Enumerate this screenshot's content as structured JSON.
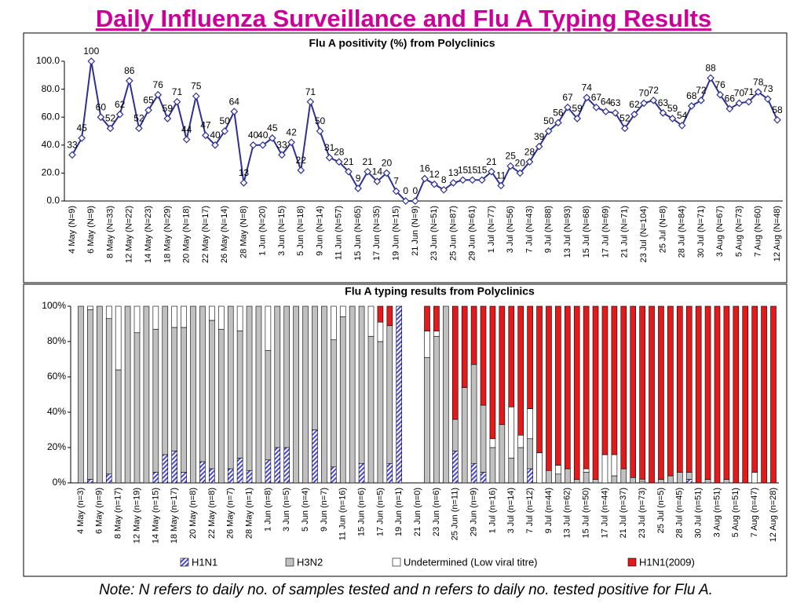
{
  "title": "Daily Influenza Surveillance and Flu A Typing Results",
  "note": "Note: N refers to daily no. of samples tested and n refers to daily no. tested positive for Flu A.",
  "chart_data": [
    {
      "type": "line",
      "title": "Flu A positivity (%) from Polyclinics",
      "color": "#2e3192",
      "categories": [
        "4 May (N=9)",
        null,
        "6 May (N=9)",
        null,
        "8 May (N=33)",
        null,
        "12 May (N=22)",
        null,
        "14 May (N=23)",
        null,
        "18 May (N=29)",
        null,
        "20 May (N=18)",
        null,
        "22 May (N=17)",
        null,
        "26 May (N=14)",
        null,
        "28 May (N=8)",
        null,
        "1 Jun (N=20)",
        null,
        "3 Jun (N=15)",
        null,
        "5 Jun (N=18)",
        null,
        "9 Jun (N=14)",
        null,
        "11 Jun (N=57)",
        null,
        "15 Jun (N=65)",
        null,
        "17 Jun (N=35)",
        null,
        "19 Jun (N=15)",
        null,
        "21 Jun (N=9)",
        null,
        "23 Jun (N=51)",
        null,
        "25 Jun (N=87)",
        null,
        "29 Jun (N=61)",
        null,
        "1 Jul (N=77)",
        null,
        "3 Jul (N=56)",
        null,
        "7 Jul (N=43)",
        null,
        "9 Jul (N=88)",
        null,
        "13 Jul (N=93)",
        null,
        "15 Jul (N=68)",
        null,
        "17 Jul (N=69)",
        null,
        "21 Jul (N=71)",
        null,
        "23 Jul (N=104)",
        null,
        "25 Jul (N=8)",
        null,
        "28 Jul (N=84)",
        null,
        "30 Jul (N=71)",
        null,
        "3 Aug (N=67)",
        null,
        "5 Aug (N=73)",
        null,
        "7 Aug (N=60)",
        null,
        "12 Aug (N=48)"
      ],
      "values": [
        33,
        45,
        100,
        60,
        52,
        62,
        86,
        52,
        65,
        76,
        59,
        71,
        44,
        75,
        47,
        40,
        50,
        64,
        13,
        40,
        40,
        45,
        33,
        42,
        22,
        71,
        50,
        31,
        28,
        21,
        9,
        21,
        14,
        20,
        7,
        0,
        0,
        16,
        12,
        8,
        13,
        15,
        15,
        15,
        21,
        11,
        25,
        20,
        28,
        39,
        50,
        56,
        67,
        59,
        74,
        67,
        64,
        63,
        52,
        62,
        70,
        72,
        63,
        59,
        54,
        68,
        72,
        88,
        76,
        66,
        70,
        71,
        78,
        73,
        58
      ],
      "ylim": [
        0,
        100
      ],
      "yticks": [
        {
          "value": 0,
          "label": "0.0"
        },
        {
          "value": 20,
          "label": "20.0"
        },
        {
          "value": 40,
          "label": "40.0"
        },
        {
          "value": 60,
          "label": "60.0"
        },
        {
          "value": 80,
          "label": "80.0"
        },
        {
          "value": 100,
          "label": "100.0"
        }
      ]
    },
    {
      "type": "stacked_bar",
      "title": "Flu A typing results from Polyclinics",
      "categories": [
        "4 May (n=3)",
        null,
        "6 May (n=9)",
        null,
        "8 May (n=17)",
        null,
        "12 May (n=19)",
        null,
        "14 May (n=15)",
        null,
        "18 May (n=17)",
        null,
        "20 May (n=8)",
        null,
        "22 May (n=8)",
        null,
        "26 May (n=7)",
        null,
        "28 May (n=1)",
        null,
        "1 Jun (n=8)",
        null,
        "3 Jun (n=5)",
        null,
        "5 Jun (n=4)",
        null,
        "9 Jun (n=7)",
        null,
        "11 Jun (n=16)",
        null,
        "15 Jun (n=6)",
        null,
        "17 Jun (n=5)",
        null,
        "19 Jun (n=1)",
        null,
        "21 Jun (n=0)",
        null,
        "23 Jun (n=6)",
        null,
        "25 Jun (n=11)",
        null,
        "29 Jun (n=9)",
        null,
        "1 Jul (n=16)",
        null,
        "3 Jul (n=14)",
        null,
        "7 Jul (n=12)",
        null,
        "9 Jul (n=44)",
        null,
        "13 Jul (n=62)",
        null,
        "15 Jul (n=50)",
        null,
        "17 Jul (n=44)",
        null,
        "21 Jul (n=37)",
        null,
        "23 Jul (n=73)",
        null,
        "25 Jul (n=5)",
        null,
        "28 Jul (n=45)",
        null,
        "30 Jul (n=51)",
        null,
        "3 Aug (n=51)",
        null,
        "5 Aug (n=51)",
        null,
        "7 Aug (n=47)",
        null,
        "12 Aug (n=28)"
      ],
      "series": [
        {
          "name": "H1N1",
          "color": "#4a4ad6",
          "pattern": "hatch",
          "values": [
            0,
            2,
            0,
            5,
            0,
            0,
            0,
            0,
            6,
            16,
            18,
            6,
            0,
            12,
            8,
            0,
            8,
            14,
            7,
            0,
            13,
            20,
            20,
            0,
            0,
            30,
            0,
            9,
            0,
            0,
            11,
            0,
            0,
            11,
            100,
            0,
            0,
            0,
            0,
            0,
            18,
            0,
            11,
            6,
            0,
            0,
            0,
            0,
            8,
            0,
            0,
            0,
            0,
            0,
            0,
            0,
            0,
            0,
            0,
            0,
            0,
            0,
            0,
            0,
            0,
            2,
            0,
            0,
            0,
            0,
            0,
            0,
            0,
            0,
            0
          ]
        },
        {
          "name": "H3N2",
          "color": "#c0c0c0",
          "values": [
            100,
            96,
            100,
            88,
            64,
            100,
            85,
            100,
            81,
            84,
            70,
            82,
            100,
            88,
            84,
            87,
            92,
            72,
            93,
            100,
            62,
            80,
            80,
            100,
            100,
            70,
            100,
            72,
            94,
            100,
            89,
            83,
            80,
            78,
            0,
            0,
            0,
            71,
            83,
            100,
            18,
            54,
            56,
            38,
            20,
            33,
            14,
            20,
            17,
            0,
            7,
            5,
            8,
            2,
            6,
            2,
            0,
            4,
            8,
            3,
            1,
            0,
            2,
            4,
            6,
            4,
            0,
            2,
            0,
            2,
            0,
            0,
            0,
            0,
            0
          ]
        },
        {
          "name": "Undetermined (Low viral titre)",
          "color": "#ffffff",
          "values": [
            0,
            2,
            0,
            7,
            36,
            0,
            15,
            0,
            13,
            0,
            12,
            12,
            0,
            0,
            8,
            13,
            0,
            14,
            0,
            0,
            25,
            0,
            0,
            0,
            0,
            0,
            0,
            19,
            6,
            0,
            0,
            17,
            11,
            0,
            0,
            0,
            0,
            15,
            3,
            0,
            0,
            0,
            0,
            0,
            5,
            0,
            29,
            7,
            17,
            17,
            0,
            5,
            0,
            0,
            2,
            0,
            16,
            12,
            0,
            0,
            1,
            0,
            0,
            0,
            0,
            0,
            0,
            0,
            0,
            0,
            0,
            0,
            6,
            0,
            0
          ]
        },
        {
          "name": "H1N1(2009)",
          "color": "#e31a1c",
          "values": [
            0,
            0,
            0,
            0,
            0,
            0,
            0,
            0,
            0,
            0,
            0,
            0,
            0,
            0,
            0,
            0,
            0,
            0,
            0,
            0,
            0,
            0,
            0,
            0,
            0,
            0,
            0,
            0,
            0,
            0,
            0,
            0,
            9,
            11,
            0,
            0,
            0,
            14,
            14,
            0,
            64,
            46,
            33,
            56,
            75,
            67,
            57,
            73,
            58,
            83,
            93,
            90,
            92,
            98,
            92,
            98,
            84,
            84,
            92,
            97,
            98,
            100,
            98,
            96,
            94,
            94,
            100,
            98,
            100,
            98,
            100,
            100,
            94,
            100,
            100
          ]
        }
      ],
      "ylim": [
        0,
        100
      ],
      "yticks": [
        {
          "value": 0,
          "label": "0%"
        },
        {
          "value": 20,
          "label": "20%"
        },
        {
          "value": 40,
          "label": "40%"
        },
        {
          "value": 60,
          "label": "60%"
        },
        {
          "value": 80,
          "label": "80%"
        },
        {
          "value": 100,
          "label": "100%"
        }
      ]
    }
  ]
}
